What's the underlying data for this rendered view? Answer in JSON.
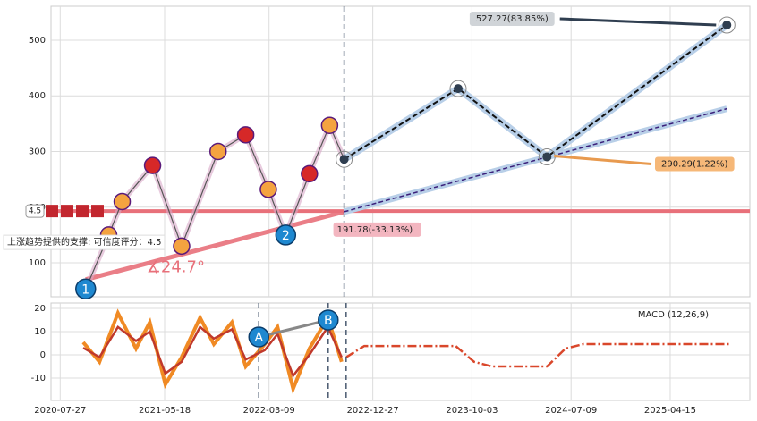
{
  "chart_data": [
    {
      "type": "line",
      "xlim": [
        "2020-07-01",
        "2025-11-26"
      ],
      "ylim": [
        39,
        561
      ],
      "yticks": [
        100,
        200,
        300,
        400,
        500
      ],
      "xticks": [
        "2020-07-27",
        "2021-05-18",
        "2022-03-09",
        "2022-12-27",
        "2023-10-03",
        "2024-07-09",
        "2025-04-15"
      ],
      "grid": true,
      "color": "#555555",
      "x": [
        "2020-10-07",
        "2020-12-11",
        "2021-01-18",
        "2021-04-14",
        "2021-07-05",
        "2021-10-16",
        "2022-01-02",
        "2022-03-07",
        "2022-04-25",
        "2022-07-01",
        "2022-08-27",
        "2022-10-07"
      ],
      "values": [
        53,
        150,
        210,
        275,
        130,
        300,
        330,
        232,
        150,
        260,
        347,
        286
      ],
      "projection": {
        "x": [
          "2022-10-07",
          "2023-08-25",
          "2024-05-02",
          "2025-09-22"
        ],
        "values": [
          286,
          413,
          290.29,
          527.27
        ],
        "color": "#111111"
      },
      "trend": {
        "x": [
          "2022-10-07",
          "2025-09-22"
        ],
        "values": [
          191.78,
          377
        ],
        "color": "#3a1f7a"
      },
      "support": {
        "value": 193,
        "color": "#e8707a"
      },
      "uptrend": {
        "x": [
          "2020-10-07",
          "2022-10-07"
        ],
        "values": [
          70,
          191.78
        ],
        "color": "#e8707a",
        "label": "191.78(-33.13%)"
      },
      "targets": [
        {
          "x": "2025-09-22",
          "value": 527.27,
          "label": "527.27(83.85%)"
        },
        {
          "x": "2024-05-02",
          "value": 290.29,
          "label": "290.29(1.22%)"
        }
      ],
      "waves": [
        {
          "label": "1",
          "x": "2020-10-07",
          "value": 53
        },
        {
          "label": "2",
          "x": "2022-04-25",
          "value": 150
        }
      ],
      "angle_label": "∡24.7°",
      "support_label": "上涨趋势提供的支撑: 可信度评分：4.5",
      "support_badge": "4.5"
    },
    {
      "type": "line",
      "title": "MACD (12,26,9)",
      "xlim": [
        "2020-07-01",
        "2025-11-26"
      ],
      "ylim": [
        -19.6,
        22.3
      ],
      "yticks": [
        -10,
        0,
        10,
        20
      ],
      "xticks": [
        "2020-07-27",
        "2021-05-18",
        "2022-03-09",
        "2022-12-27",
        "2023-10-03",
        "2024-07-09",
        "2025-04-15"
      ],
      "grid": true,
      "x": [
        "2020-09-30",
        "2020-11-15",
        "2021-01-06",
        "2021-02-26",
        "2021-04-06",
        "2021-05-20",
        "2021-07-05",
        "2021-08-26",
        "2021-10-04",
        "2021-11-24",
        "2022-01-02",
        "2022-02-25",
        "2022-04-02",
        "2022-05-16",
        "2022-07-01",
        "2022-08-22",
        "2022-09-30"
      ],
      "macd": {
        "values": [
          5.4,
          -3,
          18,
          2.7,
          14,
          -12.7,
          -1,
          16,
          4.6,
          14,
          -5,
          4.6,
          12,
          -14.6,
          2.7,
          16,
          -3
        ],
        "color": "#f08a24"
      },
      "signal": {
        "values": [
          3,
          -1,
          12,
          6,
          10,
          -8,
          -3,
          12,
          7,
          11,
          -2,
          2,
          9,
          -9,
          0,
          12,
          -1
        ],
        "color": "#c0392b"
      },
      "projection": {
        "x": [
          "2022-10-13",
          "2022-12-03",
          "2023-08-18",
          "2023-10-09",
          "2023-11-29",
          "2024-05-02",
          "2024-06-23",
          "2024-08-13",
          "2025-09-30"
        ],
        "values": [
          -1,
          3.8,
          3.8,
          -3,
          -5,
          -5,
          2.7,
          4.6,
          4.6
        ],
        "color": "#d9472b"
      },
      "waves": [
        {
          "label": "A",
          "x": "2022-02-08",
          "value": 7.7
        },
        {
          "label": "B",
          "x": "2022-08-23",
          "value": 15
        }
      ]
    }
  ]
}
